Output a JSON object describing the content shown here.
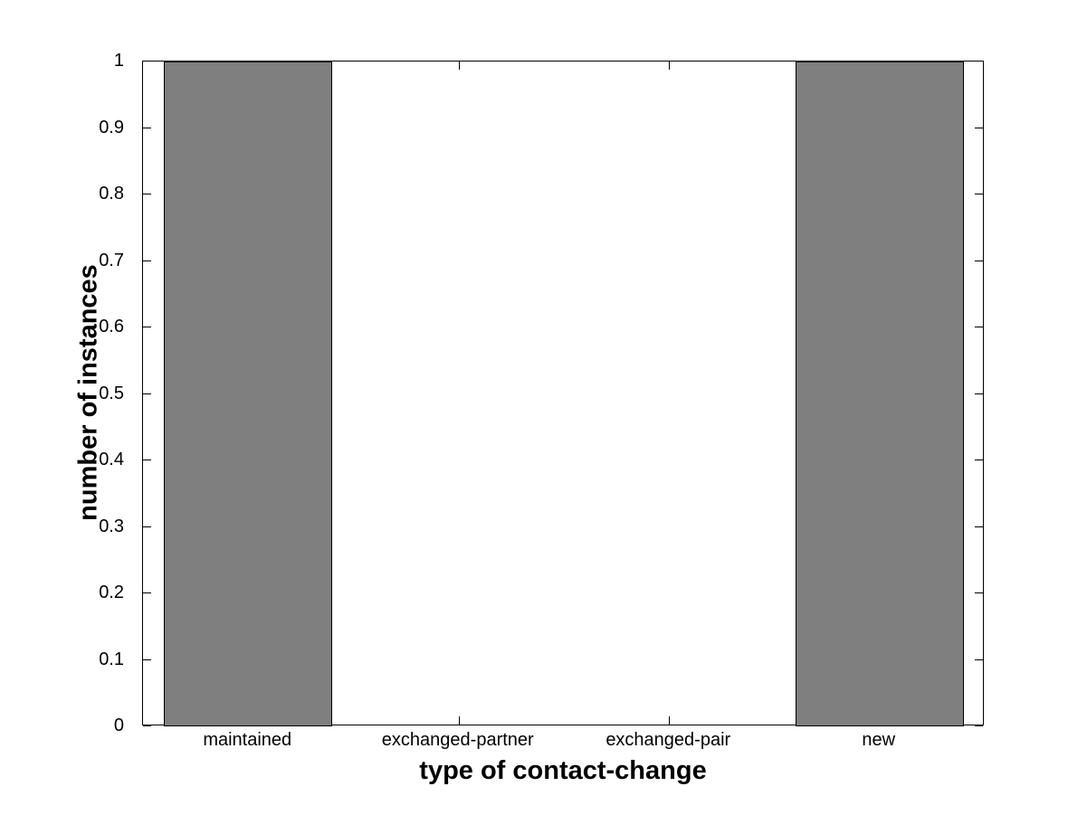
{
  "chart_data": {
    "type": "bar",
    "title": "",
    "categories": [
      "maintained",
      "exchanged-partner",
      "exchanged-pair",
      "new"
    ],
    "values": [
      1,
      0,
      0,
      1
    ],
    "xlabel": "type of contact-change",
    "ylabel": "number of instances",
    "ylim": [
      0,
      1
    ],
    "yticks": [
      0,
      0.1,
      0.2,
      0.3,
      0.4,
      0.5,
      0.6,
      0.7,
      0.8,
      0.9,
      1
    ],
    "ytick_labels": [
      "0",
      "0.1",
      "0.2",
      "0.3",
      "0.4",
      "0.5",
      "0.6",
      "0.7",
      "0.8",
      "0.9",
      "1"
    ],
    "xlim_category_units": [
      0.5,
      4.5
    ],
    "bar_width_ratio": 0.8,
    "bar_fill_color": "#7f7f7f",
    "bar_edge_color": "#000000",
    "axis_color": "#000000",
    "background_color": "#ffffff",
    "grid": false,
    "legend": null,
    "tick_direction": "in",
    "box": true
  }
}
